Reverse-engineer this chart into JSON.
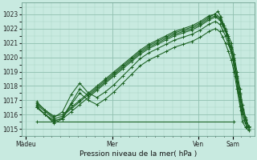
{
  "xlabel": "Pression niveau de la mer( hPa )",
  "bg_color": "#c8eae0",
  "plot_bg_color": "#c8eae0",
  "grid_color_major": "#90c0b0",
  "grid_color_minor": "#a8d4c4",
  "line_color": "#1a6020",
  "ylim": [
    1014.5,
    1023.8
  ],
  "yticks": [
    1015,
    1016,
    1017,
    1018,
    1019,
    1020,
    1021,
    1022,
    1023
  ],
  "xtick_labels": [
    "Màdeu",
    "Mer",
    "Ven",
    "Sam"
  ],
  "xtick_positions": [
    0.0,
    2.0,
    4.0,
    4.8
  ],
  "xlim": [
    -0.1,
    5.3
  ],
  "lines": [
    {
      "comment": "flat baseline line ~1015.5",
      "x": [
        0.25,
        4.82
      ],
      "y": [
        1015.5,
        1015.5
      ]
    },
    {
      "comment": "line1 - starts high ~1016.8, dips, rises to 1023, drops fast",
      "x": [
        0.25,
        0.45,
        0.65,
        0.85,
        1.05,
        1.25,
        1.45,
        1.65,
        1.85,
        2.05,
        2.25,
        2.45,
        2.65,
        2.85,
        3.05,
        3.25,
        3.45,
        3.65,
        3.85,
        4.05,
        4.25,
        4.4,
        4.5,
        4.57,
        4.63,
        4.7,
        4.77,
        4.83,
        4.9,
        4.97,
        5.03,
        5.1,
        5.17
      ],
      "y": [
        1016.8,
        1016.3,
        1015.9,
        1016.0,
        1016.5,
        1017.0,
        1017.5,
        1018.0,
        1018.5,
        1019.0,
        1019.5,
        1020.0,
        1020.5,
        1020.9,
        1021.2,
        1021.5,
        1021.8,
        1022.0,
        1022.2,
        1022.5,
        1022.9,
        1023.0,
        1022.8,
        1022.4,
        1022.0,
        1021.5,
        1021.0,
        1020.2,
        1019.0,
        1017.8,
        1016.7,
        1015.8,
        1015.2
      ]
    },
    {
      "comment": "line2",
      "x": [
        0.25,
        0.45,
        0.65,
        0.85,
        1.05,
        1.25,
        1.45,
        1.65,
        1.85,
        2.05,
        2.25,
        2.45,
        2.65,
        2.85,
        3.05,
        3.25,
        3.45,
        3.65,
        3.85,
        4.05,
        4.25,
        4.4,
        4.5,
        4.57,
        4.63,
        4.7,
        4.77,
        4.83,
        4.9,
        4.97,
        5.03,
        5.1,
        5.17
      ],
      "y": [
        1016.5,
        1016.0,
        1015.6,
        1015.7,
        1016.2,
        1016.7,
        1017.2,
        1017.7,
        1018.2,
        1018.7,
        1019.2,
        1019.7,
        1020.2,
        1020.6,
        1020.9,
        1021.2,
        1021.5,
        1021.7,
        1021.9,
        1022.2,
        1022.6,
        1022.8,
        1022.6,
        1022.2,
        1021.8,
        1021.2,
        1020.6,
        1019.8,
        1018.6,
        1017.4,
        1016.3,
        1015.6,
        1015.1
      ]
    },
    {
      "comment": "line3 - higher peak ~1023.2",
      "x": [
        0.25,
        0.45,
        0.65,
        0.85,
        1.05,
        1.25,
        1.45,
        1.65,
        1.85,
        2.05,
        2.25,
        2.45,
        2.65,
        2.85,
        3.05,
        3.25,
        3.45,
        3.65,
        3.85,
        4.05,
        4.25,
        4.38,
        4.46,
        4.53,
        4.6,
        4.67,
        4.73,
        4.8,
        4.87,
        4.93,
        5.0,
        5.07,
        5.13
      ],
      "y": [
        1016.7,
        1016.2,
        1015.7,
        1015.9,
        1016.4,
        1016.9,
        1017.4,
        1017.9,
        1018.4,
        1018.9,
        1019.4,
        1019.9,
        1020.4,
        1020.8,
        1021.1,
        1021.4,
        1021.7,
        1021.9,
        1022.1,
        1022.4,
        1022.8,
        1023.0,
        1023.2,
        1022.8,
        1022.2,
        1021.6,
        1020.8,
        1019.9,
        1018.7,
        1017.5,
        1016.3,
        1015.6,
        1015.1
      ]
    },
    {
      "comment": "line4 - with dip around Mer",
      "x": [
        0.25,
        0.45,
        0.65,
        0.85,
        1.05,
        1.25,
        1.45,
        1.65,
        1.85,
        2.05,
        2.25,
        2.45,
        2.65,
        2.85,
        3.05,
        3.25,
        3.45,
        3.65,
        3.85,
        4.05,
        4.25,
        4.4,
        4.5,
        4.57,
        4.63,
        4.7,
        4.77,
        4.83,
        4.9,
        4.97,
        5.03,
        5.1,
        5.17
      ],
      "y": [
        1016.6,
        1016.0,
        1015.5,
        1015.8,
        1016.8,
        1017.8,
        1017.3,
        1017.8,
        1018.3,
        1018.8,
        1019.3,
        1019.8,
        1020.3,
        1020.7,
        1021.0,
        1021.3,
        1021.6,
        1021.8,
        1022.0,
        1022.3,
        1022.7,
        1022.9,
        1022.7,
        1022.3,
        1021.9,
        1021.3,
        1020.7,
        1019.9,
        1018.7,
        1017.5,
        1016.4,
        1015.7,
        1015.2
      ]
    },
    {
      "comment": "line5 - with larger dip around Mer, plateau around 1017",
      "x": [
        0.25,
        0.45,
        0.65,
        0.85,
        1.05,
        1.25,
        1.45,
        1.65,
        1.85,
        2.05,
        2.25,
        2.45,
        2.65,
        2.85,
        3.05,
        3.25,
        3.45,
        3.65,
        3.85,
        4.05,
        4.25,
        4.4,
        4.5,
        4.57,
        4.63,
        4.7,
        4.77,
        4.83,
        4.9,
        4.97,
        5.03,
        5.1,
        5.17
      ],
      "y": [
        1016.9,
        1016.3,
        1015.8,
        1016.2,
        1017.4,
        1018.2,
        1017.5,
        1017.2,
        1017.6,
        1018.1,
        1018.7,
        1019.3,
        1019.9,
        1020.3,
        1020.6,
        1020.9,
        1021.2,
        1021.4,
        1021.6,
        1021.9,
        1022.3,
        1022.5,
        1022.3,
        1021.9,
        1021.5,
        1020.9,
        1020.3,
        1019.5,
        1018.3,
        1017.1,
        1016.0,
        1015.4,
        1015.0
      ]
    },
    {
      "comment": "line6 - wide fan bottom",
      "x": [
        0.25,
        0.45,
        0.65,
        0.85,
        1.05,
        1.25,
        1.45,
        1.65,
        1.85,
        2.05,
        2.25,
        2.45,
        2.65,
        2.85,
        3.05,
        3.25,
        3.45,
        3.65,
        3.85,
        4.05,
        4.25,
        4.4,
        4.5,
        4.57,
        4.63,
        4.7,
        4.77,
        4.83,
        4.9,
        4.97,
        5.03,
        5.1,
        5.17
      ],
      "y": [
        1016.5,
        1016.0,
        1015.4,
        1015.7,
        1016.7,
        1017.5,
        1017.0,
        1016.7,
        1017.1,
        1017.6,
        1018.2,
        1018.8,
        1019.4,
        1019.8,
        1020.1,
        1020.4,
        1020.7,
        1020.9,
        1021.1,
        1021.4,
        1021.8,
        1022.0,
        1021.8,
        1021.4,
        1021.0,
        1020.4,
        1019.8,
        1019.0,
        1017.8,
        1016.6,
        1015.5,
        1015.1,
        1014.9
      ]
    }
  ]
}
